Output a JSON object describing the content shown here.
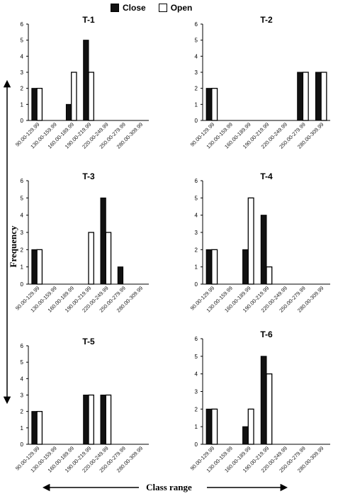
{
  "legend": {
    "closed_label": "Close",
    "open_label": "Open",
    "closed_color": "#111111",
    "open_color": "#ffffff"
  },
  "axis_labels": {
    "y": "Frequency",
    "x": "Class range"
  },
  "chart_data": [
    {
      "type": "bar",
      "title": "T-1",
      "categories": [
        "90.00-129.99",
        "130.00-159.99",
        "160.00-189.99",
        "190.00-219.99",
        "220.00-249.99",
        "250.00-279.99",
        "280.00-309.99"
      ],
      "series": [
        {
          "name": "Close",
          "values": [
            2,
            0,
            1,
            5,
            0,
            0,
            0
          ]
        },
        {
          "name": "Open",
          "values": [
            2,
            0,
            3,
            3,
            0,
            0,
            0
          ]
        }
      ],
      "ylim": [
        0,
        6
      ],
      "yticks": [
        0,
        1,
        2,
        3,
        4,
        5,
        6
      ]
    },
    {
      "type": "bar",
      "title": "T-2",
      "categories": [
        "90.00-129.99",
        "130.00-159.99",
        "160.00-189.99",
        "190.00-219.99",
        "220.00-249.99",
        "250.00-279.99",
        "280.00-309.99"
      ],
      "series": [
        {
          "name": "Close",
          "values": [
            2,
            0,
            0,
            0,
            0,
            3,
            3
          ]
        },
        {
          "name": "Open",
          "values": [
            2,
            0,
            0,
            0,
            0,
            3,
            3
          ]
        }
      ],
      "ylim": [
        0,
        6
      ],
      "yticks": [
        0,
        1,
        2,
        3,
        4,
        5,
        6
      ]
    },
    {
      "type": "bar",
      "title": "T-3",
      "categories": [
        "90.00-129.99",
        "130.00-159.99",
        "160.00-189.99",
        "190.00-219.99",
        "220.00-249.99",
        "250.00-279.99",
        "280.00-309.99"
      ],
      "series": [
        {
          "name": "Close",
          "values": [
            2,
            0,
            0,
            0,
            5,
            1,
            0
          ]
        },
        {
          "name": "Open",
          "values": [
            2,
            0,
            0,
            3,
            3,
            0,
            0
          ]
        }
      ],
      "ylim": [
        0,
        6
      ],
      "yticks": [
        0,
        1,
        2,
        3,
        4,
        5,
        6
      ]
    },
    {
      "type": "bar",
      "title": "T-4",
      "categories": [
        "90.00-129.99",
        "130.00-159.99",
        "160.00-189.99",
        "190.00-219.99",
        "220.00-249.99",
        "250.00-279.99",
        "280.00-309.99"
      ],
      "series": [
        {
          "name": "Close",
          "values": [
            2,
            0,
            2,
            4,
            0,
            0,
            0
          ]
        },
        {
          "name": "Open",
          "values": [
            2,
            0,
            5,
            1,
            0,
            0,
            0
          ]
        }
      ],
      "ylim": [
        0,
        6
      ],
      "yticks": [
        0,
        1,
        2,
        3,
        4,
        5,
        6
      ]
    },
    {
      "type": "bar",
      "title": "T-5",
      "categories": [
        "90.00-129.99",
        "130.00-159.99",
        "160.00-189.99",
        "190.00-219.99",
        "220.00-249.99",
        "250.00-279.99",
        "280.00-309.99"
      ],
      "series": [
        {
          "name": "Close",
          "values": [
            2,
            0,
            0,
            3,
            3,
            0,
            0
          ]
        },
        {
          "name": "Open",
          "values": [
            2,
            0,
            0,
            3,
            3,
            0,
            0
          ]
        }
      ],
      "ylim": [
        0,
        6
      ],
      "yticks": [
        0,
        1,
        2,
        3,
        4,
        5,
        6
      ]
    },
    {
      "type": "bar",
      "title": "T-6",
      "categories": [
        "90.00-129.99",
        "130.00-159.99",
        "160.00-189.99",
        "190.00-219.99",
        "220.00-249.99",
        "250.00-279.99",
        "280.00-309.99"
      ],
      "series": [
        {
          "name": "Close",
          "values": [
            2,
            0,
            1,
            5,
            0,
            0,
            0
          ]
        },
        {
          "name": "Open",
          "values": [
            2,
            0,
            2,
            4,
            0,
            0,
            0
          ]
        }
      ],
      "ylim": [
        0,
        6
      ],
      "yticks": [
        0,
        1,
        2,
        3,
        4,
        5,
        6
      ]
    }
  ]
}
